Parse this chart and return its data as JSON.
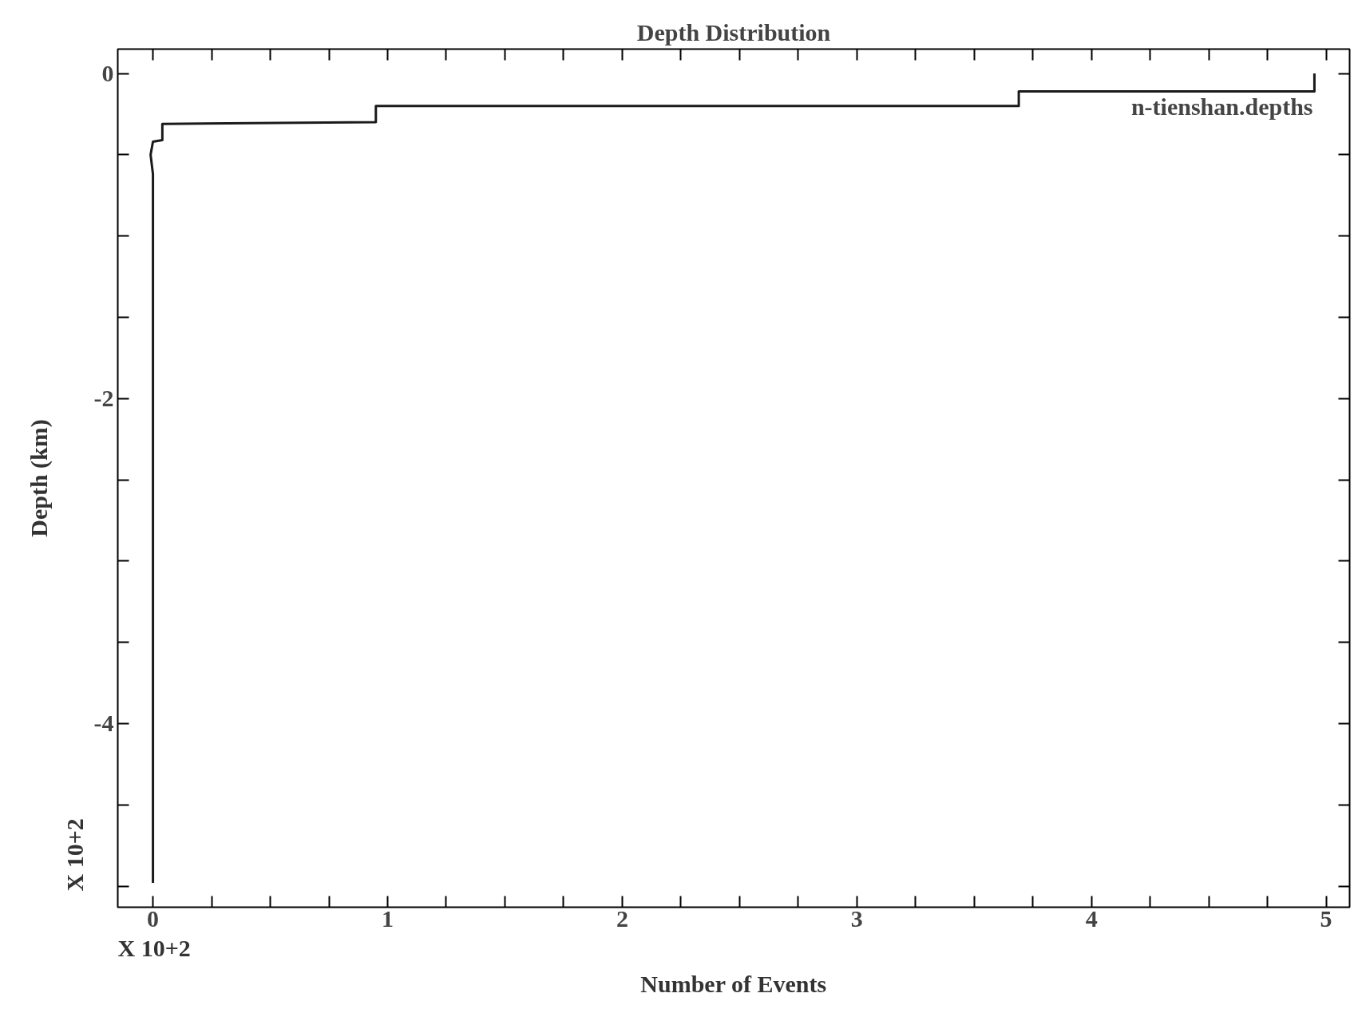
{
  "chart_data": {
    "type": "line",
    "title": "Depth Distribution",
    "xlabel": "Number of Events",
    "ylabel": "Depth (km)",
    "x": [
      0,
      0,
      -0.01,
      0,
      0.04,
      0.04,
      0.95,
      0.95,
      3.69,
      3.69,
      4.95,
      4.95
    ],
    "series": [
      {
        "color": "#1a1a1a",
        "values": [
          -4.98,
          -0.62,
          -0.5,
          -0.42,
          -0.41,
          -0.31,
          -0.3,
          -0.2,
          -0.2,
          -0.11,
          -0.11,
          0
        ]
      }
    ],
    "xlim": [
      -0.15,
      5.1
    ],
    "ylim": [
      -5.13,
      0.15
    ],
    "xticks": [
      0,
      {
        "value": 0.25,
        "label": null
      },
      {
        "value": 0.5,
        "label": null
      },
      {
        "value": 0.75,
        "label": null
      },
      1,
      {
        "value": 1.25,
        "label": null
      },
      {
        "value": 1.5,
        "label": null
      },
      {
        "value": 1.75,
        "label": null
      },
      2,
      {
        "value": 2.25,
        "label": null
      },
      {
        "value": 2.5,
        "label": null
      },
      {
        "value": 2.75,
        "label": null
      },
      3,
      {
        "value": 3.25,
        "label": null
      },
      {
        "value": 3.5,
        "label": null
      },
      {
        "value": 3.75,
        "label": null
      },
      4,
      {
        "value": 4.25,
        "label": null
      },
      {
        "value": 4.5,
        "label": null
      },
      {
        "value": 4.75,
        "label": null
      },
      5
    ],
    "yticks": [
      0,
      {
        "value": -0.5,
        "label": null
      },
      {
        "value": -1,
        "label": null
      },
      {
        "value": -1.5,
        "label": null
      },
      -2,
      {
        "value": -2.5,
        "label": null
      },
      {
        "value": -3,
        "label": null
      },
      {
        "value": -3.5,
        "label": null
      },
      -4,
      {
        "value": -4.5,
        "label": null
      },
      {
        "value": -5,
        "label": null
      }
    ],
    "annotations": [
      "n-tienshan.depths",
      "X 10+2",
      "X 10+2"
    ],
    "grid": false,
    "marker": "none",
    "line_style": "solid"
  }
}
